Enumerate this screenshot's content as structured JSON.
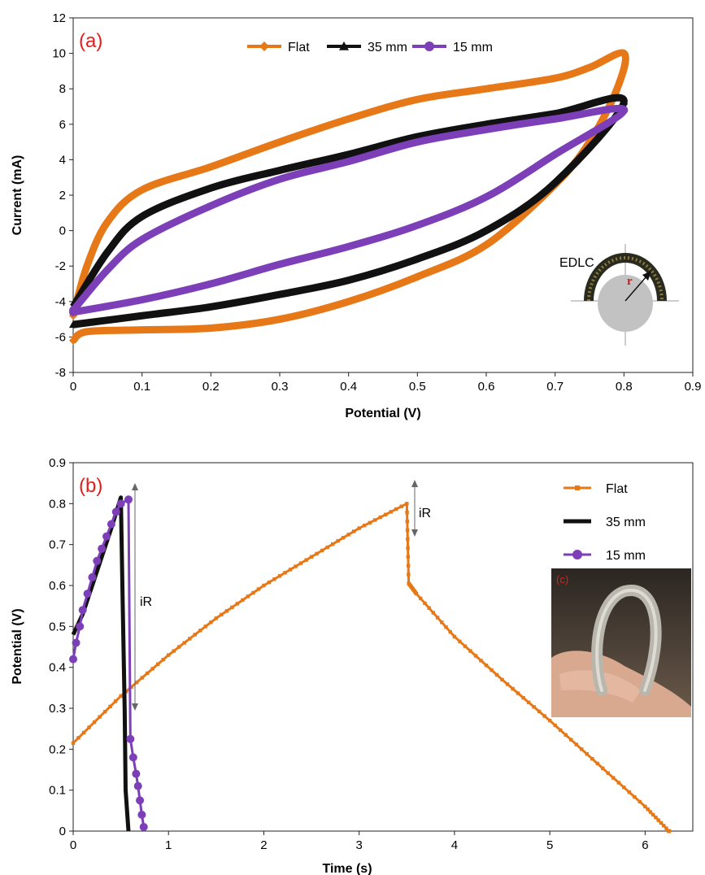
{
  "colors": {
    "flat": "#e67817",
    "mm35": "#111111",
    "mm15": "#7d3fb7",
    "panel_label": "#e0201b",
    "inset_label": "#e0201b"
  },
  "chart_data": [
    {
      "type": "line",
      "panel_label": "(a)",
      "xlabel": "Potential (V)",
      "ylabel": "Current (mA)",
      "xlim": [
        0,
        0.9
      ],
      "ylim": [
        -8,
        12
      ],
      "xticks": [
        "0",
        "0.1",
        "0.2",
        "0.3",
        "0.4",
        "0.5",
        "0.6",
        "0.7",
        "0.8",
        "0.9"
      ],
      "yticks": [
        "-8",
        "-6",
        "-4",
        "-2",
        "0",
        "2",
        "4",
        "6",
        "8",
        "10",
        "12"
      ],
      "legend": {
        "placement": "top-center",
        "entries": [
          "Flat",
          "35 mm",
          "15 mm"
        ]
      },
      "series": [
        {
          "name": "Flat",
          "marker": "diamond",
          "upper": [
            [
              0,
              -4.8
            ],
            [
              0.02,
              -2.0
            ],
            [
              0.05,
              0.5
            ],
            [
              0.1,
              2.3
            ],
            [
              0.2,
              3.6
            ],
            [
              0.3,
              5.0
            ],
            [
              0.4,
              6.3
            ],
            [
              0.5,
              7.4
            ],
            [
              0.6,
              8.0
            ],
            [
              0.7,
              8.6
            ],
            [
              0.75,
              9.2
            ],
            [
              0.8,
              10.0
            ]
          ],
          "lower": [
            [
              0.8,
              10.0
            ],
            [
              0.79,
              8.0
            ],
            [
              0.75,
              5.0
            ],
            [
              0.7,
              2.6
            ],
            [
              0.6,
              -0.8
            ],
            [
              0.5,
              -2.6
            ],
            [
              0.4,
              -4.0
            ],
            [
              0.3,
              -5.0
            ],
            [
              0.2,
              -5.5
            ],
            [
              0.1,
              -5.6
            ],
            [
              0.02,
              -5.7
            ],
            [
              0,
              -6.2
            ]
          ]
        },
        {
          "name": "35 mm",
          "marker": "triangle",
          "upper": [
            [
              0,
              -4.3
            ],
            [
              0.05,
              -1.2
            ],
            [
              0.1,
              0.8
            ],
            [
              0.2,
              2.4
            ],
            [
              0.3,
              3.4
            ],
            [
              0.4,
              4.3
            ],
            [
              0.5,
              5.3
            ],
            [
              0.6,
              6.0
            ],
            [
              0.7,
              6.6
            ],
            [
              0.8,
              7.3
            ]
          ],
          "lower": [
            [
              0.8,
              6.3
            ],
            [
              0.7,
              2.7
            ],
            [
              0.6,
              0.0
            ],
            [
              0.5,
              -1.6
            ],
            [
              0.4,
              -2.8
            ],
            [
              0.3,
              -3.6
            ],
            [
              0.2,
              -4.3
            ],
            [
              0.1,
              -4.8
            ],
            [
              0,
              -5.3
            ]
          ]
        },
        {
          "name": "15 mm",
          "marker": "circle",
          "upper": [
            [
              0,
              -4.5
            ],
            [
              0.05,
              -2.2
            ],
            [
              0.1,
              -0.5
            ],
            [
              0.2,
              1.4
            ],
            [
              0.3,
              2.9
            ],
            [
              0.4,
              3.9
            ],
            [
              0.5,
              5.0
            ],
            [
              0.6,
              5.7
            ],
            [
              0.7,
              6.3
            ],
            [
              0.8,
              6.8
            ]
          ],
          "lower": [
            [
              0.8,
              6.8
            ],
            [
              0.7,
              4.3
            ],
            [
              0.6,
              1.9
            ],
            [
              0.5,
              0.3
            ],
            [
              0.4,
              -0.9
            ],
            [
              0.3,
              -1.9
            ],
            [
              0.2,
              -3.0
            ],
            [
              0.1,
              -3.9
            ],
            [
              0,
              -4.6
            ]
          ]
        }
      ],
      "annotations": {
        "edlc_label": "EDLC",
        "radius_label": "r"
      }
    },
    {
      "type": "line",
      "panel_label": "(b)",
      "xlabel": "Time (s)",
      "ylabel": "Potential (V)",
      "xlim": [
        0,
        6.5
      ],
      "ylim": [
        0,
        0.9
      ],
      "xticks": [
        "0",
        "1",
        "2",
        "3",
        "4",
        "5",
        "6"
      ],
      "yticks": [
        "0",
        "0.1",
        "0.2",
        "0.3",
        "0.4",
        "0.5",
        "0.6",
        "0.7",
        "0.8",
        "0.9"
      ],
      "legend": {
        "placement": "top-right",
        "entries": [
          "Flat",
          "35 mm",
          "15 mm"
        ]
      },
      "series": [
        {
          "name": "Flat",
          "marker": "square",
          "points": [
            [
              0,
              0.215
            ],
            [
              0.5,
              0.33
            ],
            [
              1.0,
              0.43
            ],
            [
              1.5,
              0.52
            ],
            [
              2.0,
              0.6
            ],
            [
              2.5,
              0.67
            ],
            [
              3.0,
              0.74
            ],
            [
              3.5,
              0.8
            ],
            [
              3.52,
              0.605
            ],
            [
              3.6,
              0.58
            ],
            [
              4.0,
              0.475
            ],
            [
              4.5,
              0.37
            ],
            [
              5.0,
              0.27
            ],
            [
              5.5,
              0.165
            ],
            [
              6.0,
              0.06
            ],
            [
              6.25,
              0.0
            ]
          ]
        },
        {
          "name": "35 mm",
          "marker": "none",
          "points": [
            [
              0,
              0.48
            ],
            [
              0.1,
              0.53
            ],
            [
              0.2,
              0.6
            ],
            [
              0.3,
              0.67
            ],
            [
              0.4,
              0.74
            ],
            [
              0.5,
              0.815
            ],
            [
              0.52,
              0.55
            ],
            [
              0.54,
              0.3
            ],
            [
              0.55,
              0.1
            ],
            [
              0.58,
              0.0
            ]
          ]
        },
        {
          "name": "15 mm",
          "marker": "circle",
          "points": [
            [
              0,
              0.42
            ],
            [
              0.03,
              0.46
            ],
            [
              0.07,
              0.5
            ],
            [
              0.1,
              0.54
            ],
            [
              0.15,
              0.58
            ],
            [
              0.2,
              0.62
            ],
            [
              0.25,
              0.66
            ],
            [
              0.3,
              0.69
            ],
            [
              0.35,
              0.72
            ],
            [
              0.4,
              0.75
            ],
            [
              0.45,
              0.78
            ],
            [
              0.5,
              0.8
            ],
            [
              0.58,
              0.81
            ],
            [
              0.6,
              0.225
            ],
            [
              0.63,
              0.18
            ],
            [
              0.66,
              0.14
            ],
            [
              0.68,
              0.11
            ],
            [
              0.7,
              0.075
            ],
            [
              0.72,
              0.04
            ],
            [
              0.74,
              0.01
            ]
          ]
        }
      ],
      "annotations": {
        "ir_label_1": "iR",
        "ir_label_2": "iR",
        "inset_label": "(c)"
      }
    }
  ]
}
